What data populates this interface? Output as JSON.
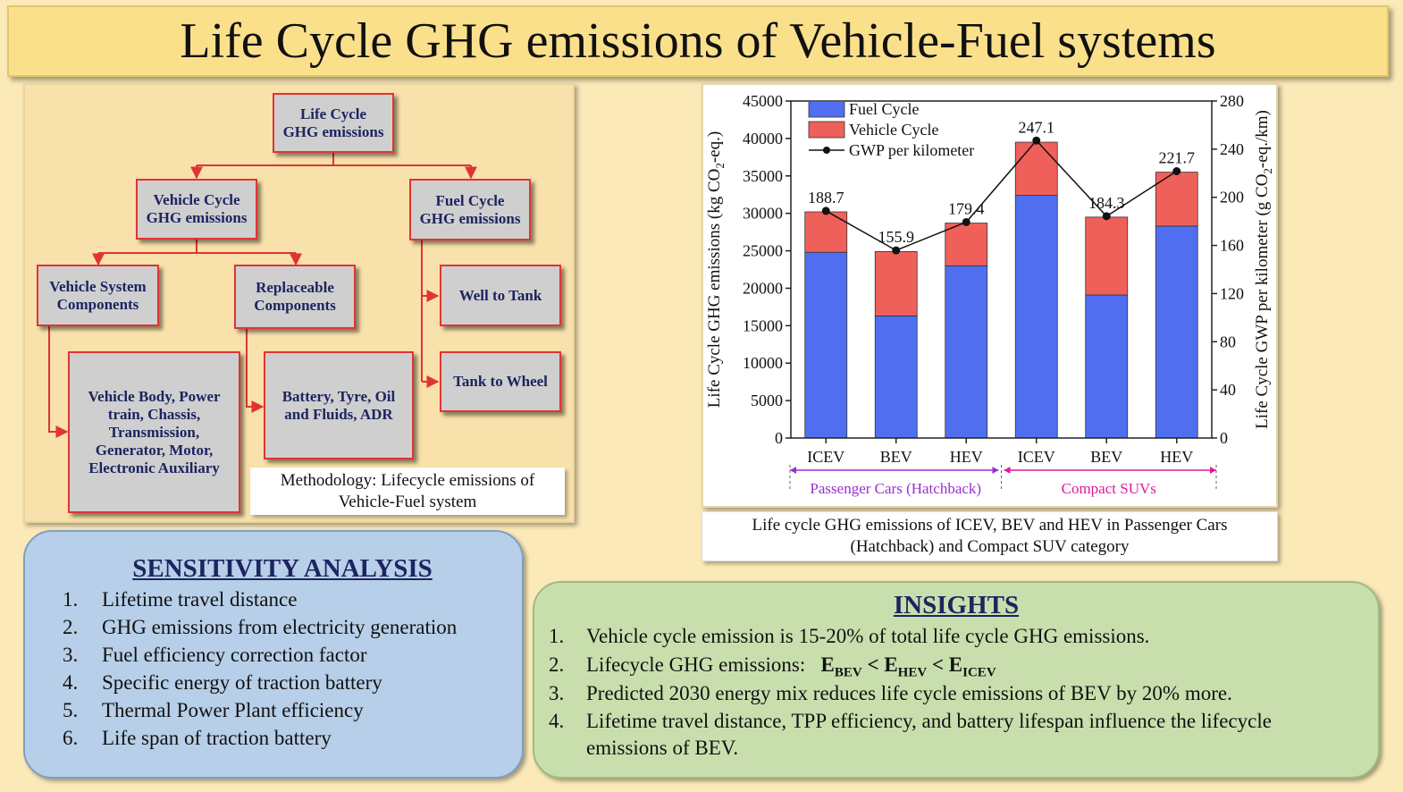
{
  "title": "Life Cycle GHG emissions of Vehicle-Fuel systems",
  "methodology": {
    "root": "Life Cycle\nGHG emissions",
    "vehicle_cycle": "Vehicle Cycle\nGHG emissions",
    "fuel_cycle": "Fuel Cycle\nGHG emissions",
    "vehicle_system": "Vehicle System\nComponents",
    "replaceable": "Replaceable\nComponents",
    "well_to_tank": "Well to Tank",
    "tank_to_wheel": "Tank to Wheel",
    "vehicle_body": "Vehicle Body, Power\ntrain, Chassis,\nTransmission,\nGenerator, Motor,\nElectronic Auxiliary",
    "battery": "Battery, Tyre, Oil\nand Fluids, ADR",
    "caption": "Methodology: Lifecycle emissions of\nVehicle-Fuel system",
    "colors": {
      "box_fill": "#cfcfcf",
      "box_border": "#e03434",
      "arrow": "#e03434",
      "text": "#1d2460"
    }
  },
  "chart_data": {
    "type": "bar",
    "stacked": true,
    "categories": [
      "ICEV",
      "BEV",
      "HEV",
      "ICEV",
      "BEV",
      "HEV"
    ],
    "groups": [
      {
        "label": "Passenger Cars (Hatchback)",
        "color": "#9a2fd0"
      },
      {
        "label": "Compact SUVs",
        "color": "#e01a9a"
      }
    ],
    "series": [
      {
        "name": "Fuel Cycle",
        "color": "#4f6ff0",
        "values": [
          24800,
          16300,
          23000,
          32400,
          19100,
          28300
        ]
      },
      {
        "name": "Vehicle Cycle",
        "color": "#f0605a",
        "values": [
          5400,
          8600,
          5700,
          7100,
          10400,
          7200
        ]
      }
    ],
    "line": {
      "name": "GWP per kilometer",
      "values": [
        188.7,
        155.9,
        179.4,
        247.1,
        184.3,
        221.7
      ]
    },
    "ylabel": "Life Cycle GHG emissions (kg CO2-eq.)",
    "y2label": "Life Cycle GWP per kilometer (g CO2-eq./km)",
    "ylim": [
      0,
      45000
    ],
    "y2lim": [
      0,
      280
    ],
    "yticks": [
      "0",
      "5000",
      "10000",
      "15000",
      "20000",
      "25000",
      "30000",
      "35000",
      "40000",
      "45000"
    ],
    "y2ticks": [
      "0",
      "40",
      "80",
      "120",
      "160",
      "200",
      "240",
      "280"
    ],
    "legend": "top-left",
    "caption": "Life cycle GHG emissions of ICEV, BEV and HEV in Passenger Cars\n(Hatchback) and Compact SUV category"
  },
  "sensitivity": {
    "title": "SENSITIVITY ANALYSIS",
    "items": [
      {
        "num": "1.",
        "text": "Lifetime travel distance"
      },
      {
        "num": "2.",
        "text": "GHG emissions from electricity generation"
      },
      {
        "num": "3.",
        "text": "Fuel efficiency correction factor"
      },
      {
        "num": "4.",
        "text": "Specific energy of traction battery"
      },
      {
        "num": "5.",
        "text": "Thermal Power Plant efficiency"
      },
      {
        "num": "6.",
        "text": "Life span of traction battery"
      }
    ]
  },
  "insights": {
    "title": "INSIGHTS",
    "items": [
      {
        "num": "1.",
        "text": "Vehicle cycle emission is 15-20% of total life cycle GHG emissions."
      },
      {
        "num": "2.",
        "text": "Lifecycle GHG emissions:"
      },
      {
        "num": "3.",
        "text": "Predicted 2030 energy mix reduces life cycle emissions of BEV by 20% more."
      },
      {
        "num": "4.",
        "text": "Lifetime travel distance, TPP efficiency, and battery lifespan influence the lifecycle emissions of BEV."
      }
    ],
    "inequality": {
      "e": "E",
      "bev": "BEV",
      "hev": "HEV",
      "icev": "ICEV",
      "lt": "<"
    }
  }
}
